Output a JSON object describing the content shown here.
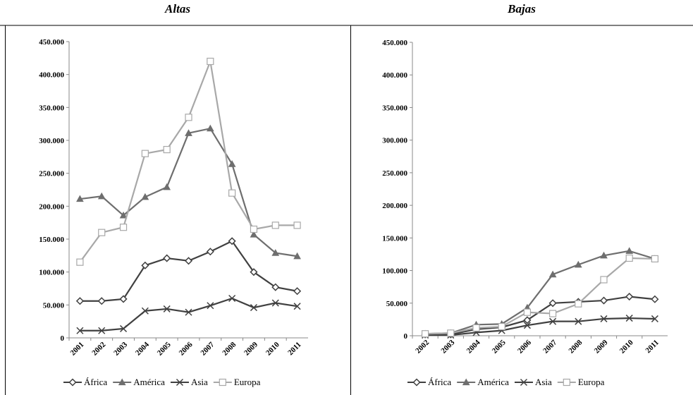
{
  "chart_data": [
    {
      "type": "line",
      "title": "Altas",
      "categories": [
        "2001",
        "2002",
        "2003",
        "2004",
        "2005",
        "2006",
        "2007",
        "2008",
        "2009",
        "2010",
        "2011"
      ],
      "series": [
        {
          "name": "África",
          "color": "#404040",
          "marker": "diamond",
          "values": [
            56000,
            56000,
            59000,
            110000,
            121000,
            117000,
            131000,
            147000,
            100000,
            77000,
            71000
          ]
        },
        {
          "name": "América",
          "color": "#6e6e6e",
          "marker": "triangle",
          "values": [
            211000,
            215000,
            186000,
            214000,
            229000,
            311000,
            318000,
            264000,
            157000,
            129000,
            124000
          ]
        },
        {
          "name": "Asia",
          "color": "#404040",
          "marker": "x",
          "values": [
            11000,
            11000,
            14000,
            41000,
            44000,
            39000,
            49000,
            60000,
            46000,
            53000,
            48000
          ]
        },
        {
          "name": "Europa",
          "color": "#a8a8a8",
          "marker": "square",
          "values": [
            115000,
            160000,
            168000,
            280000,
            286000,
            335000,
            420000,
            220000,
            165000,
            171000,
            171000
          ]
        }
      ],
      "ylim": [
        0,
        450000
      ],
      "yticks": [
        0,
        {
          "value": 50000,
          "label": "50.000"
        },
        {
          "value": 100000,
          "label": "100.000"
        },
        {
          "value": 150000,
          "label": "150.000"
        },
        {
          "value": 200000,
          "label": "200.000"
        },
        {
          "value": 250000,
          "label": "250.000"
        },
        {
          "value": 300000,
          "label": "300.000"
        },
        {
          "value": 350000,
          "label": "350.000"
        },
        {
          "value": 400000,
          "label": "400.000"
        },
        {
          "value": 450000,
          "label": "450.000"
        }
      ],
      "legend": "bottom"
    },
    {
      "type": "line",
      "title": "Bajas",
      "categories": [
        "2002",
        "2003",
        "2004",
        "2005",
        "2006",
        "2007",
        "2008",
        "2009",
        "2010",
        "2011"
      ],
      "series": [
        {
          "name": "África",
          "color": "#404040",
          "marker": "diamond",
          "values": [
            2000,
            2000,
            10000,
            13000,
            24000,
            50000,
            52000,
            54000,
            60000,
            56000
          ]
        },
        {
          "name": "América",
          "color": "#6e6e6e",
          "marker": "triangle",
          "values": [
            3000,
            4000,
            17000,
            18000,
            43000,
            94000,
            109000,
            123000,
            130000,
            118000
          ]
        },
        {
          "name": "Asia",
          "color": "#404040",
          "marker": "x",
          "values": [
            1000,
            1000,
            5000,
            8000,
            16000,
            22000,
            22000,
            26000,
            27000,
            26000
          ]
        },
        {
          "name": "Europa",
          "color": "#a8a8a8",
          "marker": "square",
          "values": [
            3000,
            4000,
            12000,
            14000,
            36000,
            34000,
            49000,
            86000,
            119000,
            118000
          ]
        }
      ],
      "ylim": [
        0,
        450000
      ],
      "yticks": [
        0,
        {
          "value": 50000,
          "label": "50.000"
        },
        {
          "value": 100000,
          "label": "100.000"
        },
        {
          "value": 150000,
          "label": "150.000"
        },
        {
          "value": 200000,
          "label": "200.000"
        },
        {
          "value": 250000,
          "label": "250.000"
        },
        {
          "value": 300000,
          "label": "300.000"
        },
        {
          "value": 350000,
          "label": "350.000"
        },
        {
          "value": 400000,
          "label": "400.000"
        },
        {
          "value": 450000,
          "label": "450.000"
        }
      ],
      "legend": "bottom"
    }
  ]
}
